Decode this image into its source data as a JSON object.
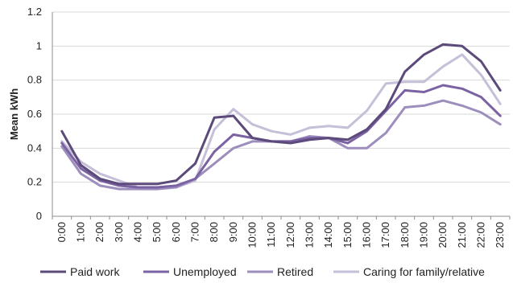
{
  "chart_data": {
    "type": "line",
    "title": "",
    "xlabel": "",
    "ylabel": "Mean kWh",
    "ylim": [
      0,
      1.2
    ],
    "yticks": [
      "0",
      "0.2",
      "0.4",
      "0.6",
      "0.8",
      "1",
      "1.2"
    ],
    "categories": [
      "0:00",
      "1:00",
      "2:00",
      "3:00",
      "4:00",
      "5:00",
      "6:00",
      "7:00",
      "8:00",
      "9:00",
      "10:00",
      "11:00",
      "12:00",
      "13:00",
      "14:00",
      "15:00",
      "16:00",
      "17:00",
      "18:00",
      "19:00",
      "20:00",
      "21:00",
      "22:00",
      "23:00"
    ],
    "grid": "horizontal",
    "legend_position": "bottom",
    "series": [
      {
        "name": "Paid work",
        "color": "#5b4a7a",
        "values": [
          0.5,
          0.3,
          0.22,
          0.19,
          0.19,
          0.19,
          0.21,
          0.31,
          0.58,
          0.59,
          0.46,
          0.44,
          0.43,
          0.45,
          0.46,
          0.45,
          0.51,
          0.63,
          0.85,
          0.95,
          1.01,
          1.0,
          0.91,
          0.74
        ]
      },
      {
        "name": "Unemployed",
        "color": "#7a62a3",
        "values": [
          0.43,
          0.28,
          0.21,
          0.18,
          0.17,
          0.17,
          0.18,
          0.22,
          0.38,
          0.48,
          0.46,
          0.44,
          0.44,
          0.46,
          0.46,
          0.43,
          0.5,
          0.62,
          0.74,
          0.73,
          0.77,
          0.75,
          0.7,
          0.59
        ]
      },
      {
        "name": "Retired",
        "color": "#9d8ebd",
        "values": [
          0.41,
          0.25,
          0.18,
          0.16,
          0.16,
          0.16,
          0.17,
          0.22,
          0.31,
          0.4,
          0.44,
          0.44,
          0.44,
          0.47,
          0.46,
          0.4,
          0.4,
          0.49,
          0.64,
          0.65,
          0.68,
          0.65,
          0.61,
          0.54
        ]
      },
      {
        "name": "Caring for family/relative",
        "color": "#c6bfd8",
        "values": [
          0.44,
          0.32,
          0.25,
          0.21,
          0.17,
          0.17,
          0.17,
          0.21,
          0.51,
          0.63,
          0.54,
          0.5,
          0.48,
          0.52,
          0.53,
          0.52,
          0.62,
          0.78,
          0.79,
          0.79,
          0.88,
          0.95,
          0.83,
          0.66
        ]
      }
    ]
  }
}
